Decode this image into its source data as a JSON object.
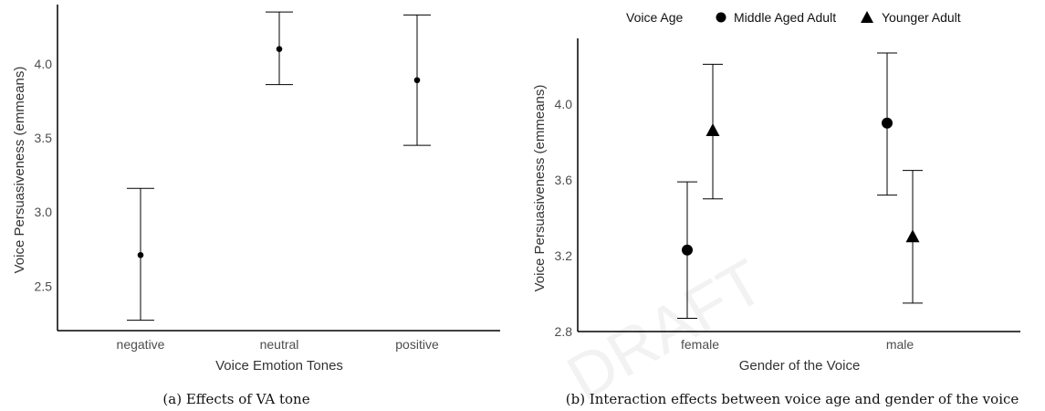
{
  "chart_data": [
    {
      "type": "scatter",
      "xlabel": "Voice Emotion Tones",
      "ylabel": "Voice Persuasiveness (emmeans)",
      "caption": "(a) Effects of VA tone",
      "categories": [
        "negative",
        "neutral",
        "positive"
      ],
      "yticks": [
        "2.5",
        "3.0",
        "3.5",
        "4.0"
      ],
      "ylim": [
        2.2,
        4.4
      ],
      "points": [
        {
          "x": "negative",
          "y": 2.71,
          "lower": 2.27,
          "upper": 3.16
        },
        {
          "x": "neutral",
          "y": 4.1,
          "lower": 3.86,
          "upper": 4.35
        },
        {
          "x": "positive",
          "y": 3.89,
          "lower": 3.45,
          "upper": 4.33
        }
      ],
      "grid": false
    },
    {
      "type": "scatter",
      "xlabel": "Gender of the Voice",
      "ylabel": "Voice Persuasiveness (emmeans)",
      "caption": "(b) Interaction effects between voice age and gender of the voice",
      "categories": [
        "female",
        "male"
      ],
      "yticks": [
        "2.8",
        "3.2",
        "3.6",
        "4.0"
      ],
      "ylim": [
        2.8,
        4.35
      ],
      "legend": {
        "title": "Voice Age",
        "position": "top"
      },
      "series": [
        {
          "name": "Middle Aged Adult",
          "marker": "circle",
          "points": [
            {
              "x": "female",
              "y": 3.23,
              "lower": 2.87,
              "upper": 3.59
            },
            {
              "x": "male",
              "y": 3.9,
              "lower": 3.52,
              "upper": 4.27
            }
          ]
        },
        {
          "name": "Younger Adult",
          "marker": "triangle",
          "points": [
            {
              "x": "female",
              "y": 3.86,
              "lower": 3.5,
              "upper": 4.21
            },
            {
              "x": "male",
              "y": 3.3,
              "lower": 2.95,
              "upper": 3.65
            }
          ]
        }
      ],
      "grid": false
    }
  ],
  "watermark": "DRAFT"
}
